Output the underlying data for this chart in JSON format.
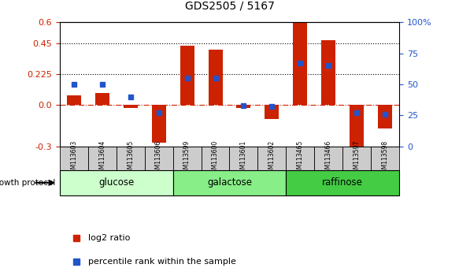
{
  "title": "GDS2505 / 5167",
  "samples": [
    "GSM113603",
    "GSM113604",
    "GSM113605",
    "GSM113606",
    "GSM113599",
    "GSM113600",
    "GSM113601",
    "GSM113602",
    "GSM113465",
    "GSM113466",
    "GSM113597",
    "GSM113598"
  ],
  "log2_ratio": [
    0.07,
    0.09,
    -0.02,
    -0.27,
    0.43,
    0.4,
    -0.02,
    -0.1,
    0.6,
    0.47,
    -0.3,
    -0.17
  ],
  "percentile_rank": [
    50,
    50,
    40,
    27,
    55,
    55,
    33,
    32,
    67,
    65,
    27,
    26
  ],
  "groups": [
    {
      "label": "glucose",
      "start": 0,
      "end": 4,
      "color": "#ccffcc"
    },
    {
      "label": "galactose",
      "start": 4,
      "end": 8,
      "color": "#88ee88"
    },
    {
      "label": "raffinose",
      "start": 8,
      "end": 12,
      "color": "#44cc44"
    }
  ],
  "ylim_left": [
    -0.3,
    0.6
  ],
  "ylim_right": [
    0,
    100
  ],
  "yticks_left": [
    -0.3,
    0.0,
    0.225,
    0.45,
    0.6
  ],
  "yticks_right": [
    0,
    25,
    50,
    75,
    100
  ],
  "bar_color": "#cc2200",
  "dot_color": "#2255cc",
  "dotted_lines": [
    0.225,
    0.45
  ],
  "title_color": "black",
  "left_tick_color": "#cc2200",
  "right_tick_color": "#2255cc",
  "legend_log2": "log2 ratio",
  "legend_pct": "percentile rank within the sample",
  "sample_box_color": "#cccccc"
}
